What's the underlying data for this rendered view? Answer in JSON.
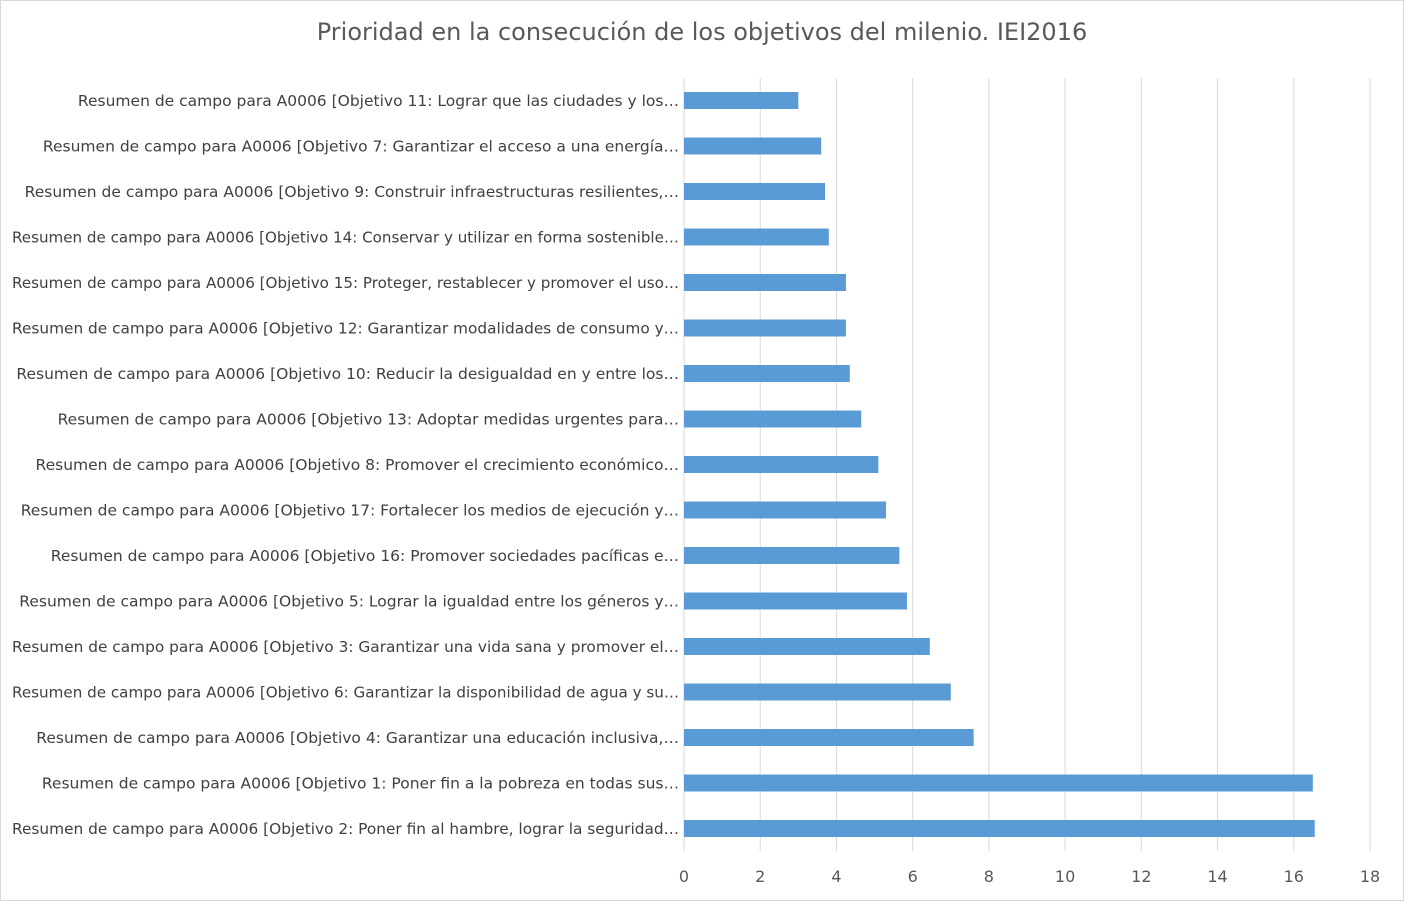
{
  "chart_data": {
    "type": "bar",
    "orientation": "horizontal",
    "title": "Prioridad en la consecución de los objetivos del milenio. IEI2016",
    "xlabel": "",
    "ylabel": "",
    "xlim": [
      0,
      18
    ],
    "xticks": [
      0,
      2,
      4,
      6,
      8,
      10,
      12,
      14,
      16,
      18
    ],
    "grid": "vertical",
    "bar_color": "#5b9bd5",
    "categories": [
      "Resumen de campo para A0006 [Objetivo 11: Lograr que las ciudades y los…",
      "Resumen de campo para A0006 [Objetivo 7: Garantizar el acceso a una energía…",
      "Resumen de campo para A0006 [Objetivo 9: Construir infraestructuras resilientes,…",
      "Resumen de campo para A0006 [Objetivo 14: Conservar y utilizar en forma sostenible…",
      "Resumen de campo para A0006 [Objetivo 15: Proteger, restablecer y promover el uso…",
      "Resumen de campo para A0006 [Objetivo 12: Garantizar modalidades de consumo y…",
      "Resumen de campo para A0006 [Objetivo 10: Reducir la desigualdad en y entre los…",
      "Resumen de campo para A0006 [Objetivo 13: Adoptar medidas urgentes para…",
      "Resumen de campo para A0006 [Objetivo 8: Promover el crecimiento económico…",
      "Resumen de campo para A0006 [Objetivo 17: Fortalecer los medios de ejecución y…",
      "Resumen de campo para A0006 [Objetivo 16: Promover sociedades pacíficas e…",
      "Resumen de campo para A0006 [Objetivo 5: Lograr la igualdad entre los géneros y…",
      "Resumen de campo para A0006 [Objetivo 3: Garantizar una vida sana y promover el…",
      "Resumen de campo para A0006 [Objetivo 6: Garantizar la disponibilidad de agua y su…",
      "Resumen de campo para A0006 [Objetivo 4: Garantizar una educación inclusiva,…",
      "Resumen de campo para A0006 [Objetivo 1: Poner fin a la pobreza en todas sus…",
      "Resumen de campo para A0006 [Objetivo 2: Poner fin al hambre, lograr la seguridad…"
    ],
    "values": [
      3.0,
      3.6,
      3.7,
      3.8,
      4.25,
      4.25,
      4.35,
      4.65,
      5.1,
      5.3,
      5.65,
      5.85,
      6.45,
      7.0,
      7.6,
      16.5,
      16.55
    ]
  }
}
